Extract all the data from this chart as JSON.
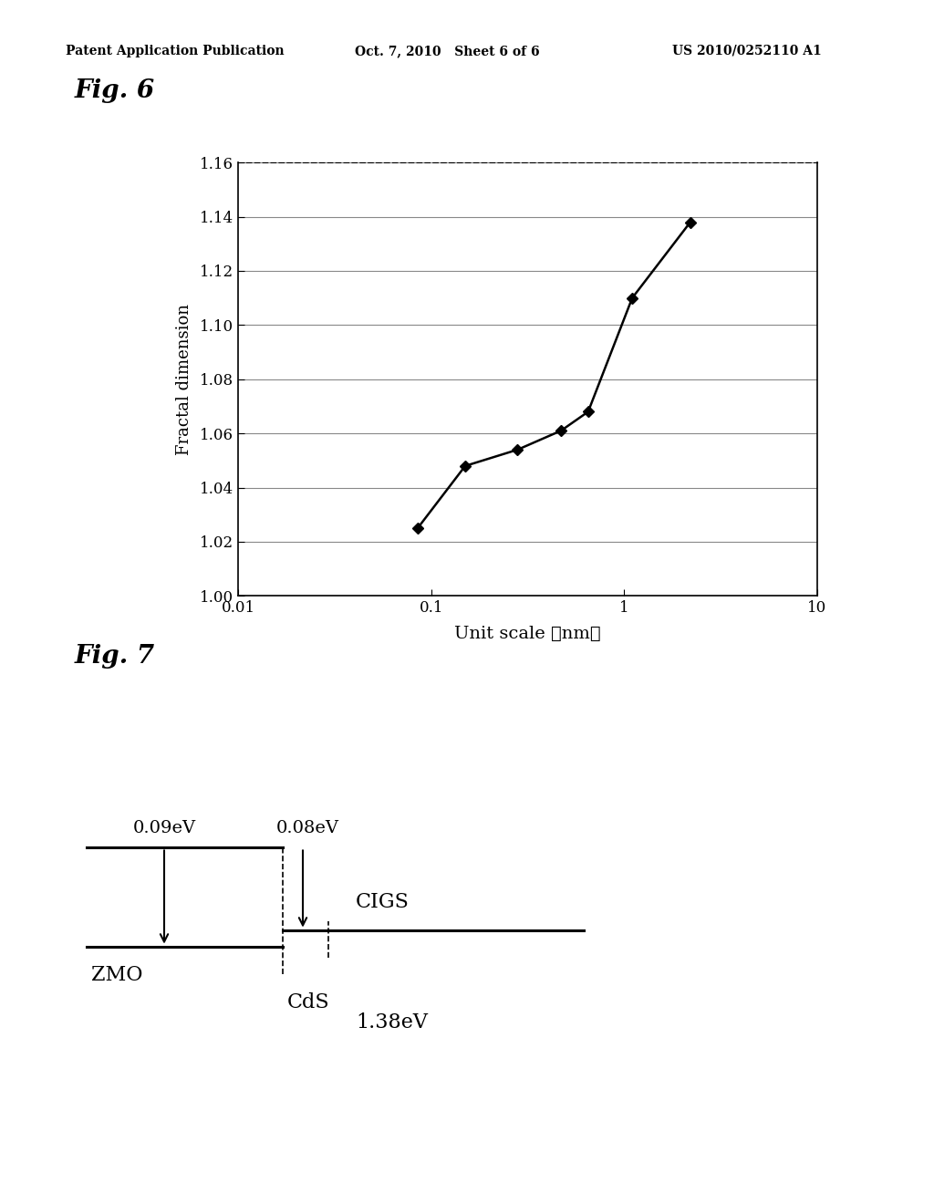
{
  "header_left": "Patent Application Publication",
  "header_mid": "Oct. 7, 2010   Sheet 6 of 6",
  "header_right": "US 2010/0252110 A1",
  "fig6_label": "Fig. 6",
  "fig7_label": "Fig. 7",
  "xlabel": "Unit scale （nm）",
  "ylabel": "Fractal dimension",
  "x_data": [
    0.085,
    0.15,
    0.28,
    0.47,
    0.65,
    1.1,
    2.2
  ],
  "y_data": [
    1.025,
    1.048,
    1.054,
    1.061,
    1.068,
    1.11,
    1.138
  ],
  "xlim_log": [
    0.01,
    10
  ],
  "ylim": [
    1.0,
    1.16
  ],
  "yticks": [
    1.0,
    1.02,
    1.04,
    1.06,
    1.08,
    1.1,
    1.12,
    1.14,
    1.16
  ],
  "xticks": [
    0.01,
    0.1,
    1,
    10
  ],
  "xtick_labels": [
    "0.01",
    "0.1",
    "1",
    "10"
  ],
  "line_color": "#000000",
  "marker": "D",
  "marker_size": 6,
  "bg_color": "#ffffff",
  "plot_bg": "#ffffff",
  "zmo_label": "ZMO",
  "cds_label": "CdS",
  "cigs_label": "CIGS",
  "ev_138": "1.38eV",
  "ev_009": "0.09eV",
  "ev_008": "0.08eV"
}
